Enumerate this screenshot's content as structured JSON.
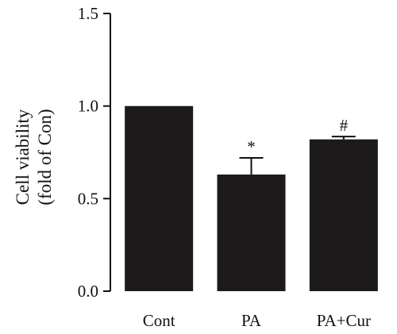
{
  "chart_data": {
    "type": "bar",
    "categories": [
      "Cont",
      "PA",
      "PA+Cur"
    ],
    "values": [
      1.0,
      0.63,
      0.82
    ],
    "errors": [
      0.0,
      0.09,
      0.015
    ],
    "annotations": [
      "",
      "*",
      "#"
    ],
    "title": "",
    "xlabel": "",
    "ylabel": [
      "Cell viability",
      "(fold of Con)"
    ],
    "ylim": [
      0,
      1.5
    ],
    "yticks": [
      "0.0",
      "0.5",
      "1.0",
      "1.5"
    ],
    "ytick_values": [
      0,
      0.5,
      1.0,
      1.5
    ],
    "grid": false,
    "legend": "none",
    "bar_color": "#1c1a1b"
  }
}
